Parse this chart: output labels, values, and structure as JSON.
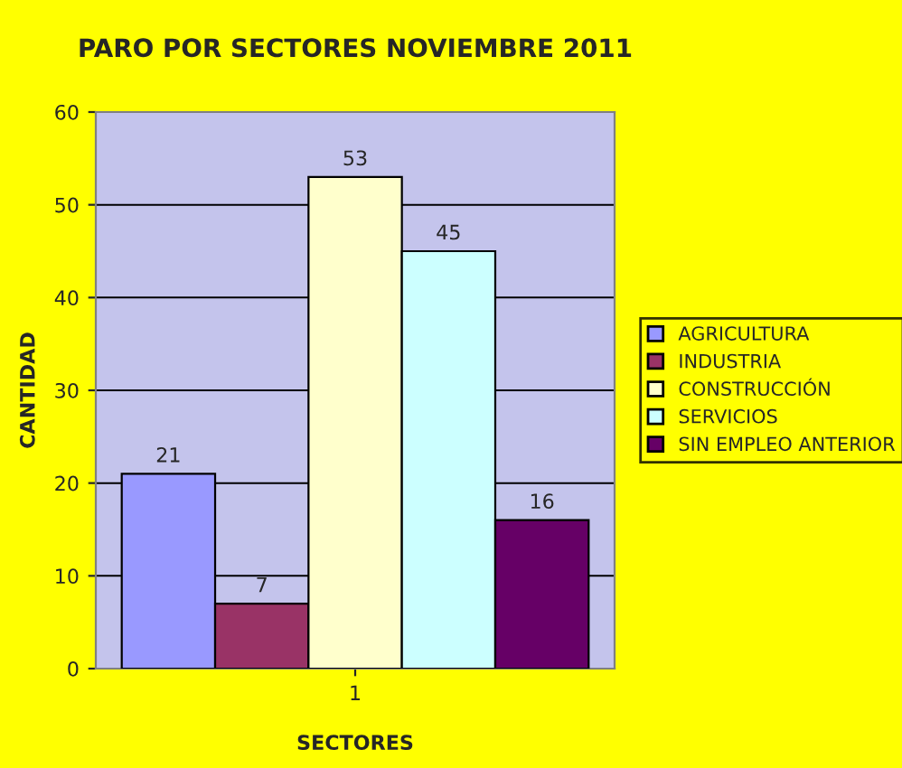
{
  "chart_data": {
    "type": "bar",
    "title": "PARO POR SECTORES NOVIEMBRE 2011",
    "xlabel": "SECTORES",
    "ylabel": "CANTIDAD",
    "categories": [
      "1"
    ],
    "series": [
      {
        "name": "AGRICULTURA",
        "color": "#9999ff",
        "values": [
          21
        ]
      },
      {
        "name": "INDUSTRIA",
        "color": "#993366",
        "values": [
          7
        ]
      },
      {
        "name": "CONSTRUCCIÓN",
        "color": "#ffffcc",
        "values": [
          53
        ]
      },
      {
        "name": "SERVICIOS",
        "color": "#ccffff",
        "values": [
          45
        ]
      },
      {
        "name": "SIN EMPLEO ANTERIOR",
        "color": "#660066",
        "values": [
          16
        ]
      }
    ],
    "ylim": [
      0,
      60
    ],
    "yticks": [
      0,
      10,
      20,
      30,
      40,
      50,
      60
    ],
    "grid": "y",
    "legend": "right",
    "data_labels": true
  }
}
